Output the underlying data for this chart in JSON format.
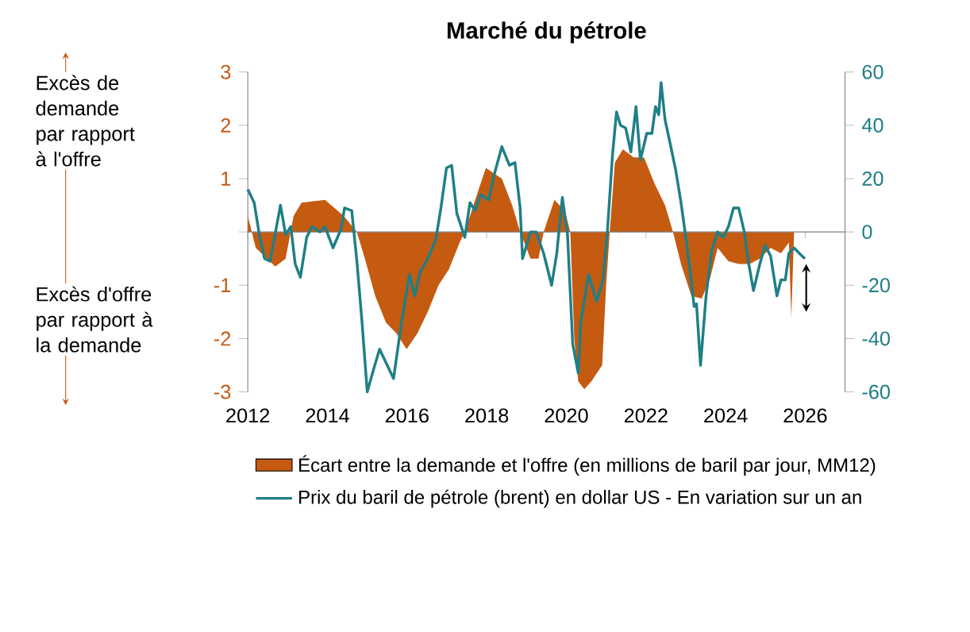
{
  "chart_data": {
    "type": "area",
    "title": "Marché du pétrole",
    "legend": "bottom",
    "marker": "none",
    "xlim": [
      2012,
      2027
    ],
    "xticks": [
      2012,
      2014,
      2016,
      2018,
      2020,
      2022,
      2024,
      2026
    ],
    "ylim": [
      -3,
      3
    ],
    "yticks": [
      -3,
      -2,
      -1,
      {
        "value": 0,
        "label": null
      },
      1,
      2,
      3
    ],
    "y2lim": [
      -60,
      60
    ],
    "y2ticks": [
      -60,
      -40,
      -20,
      0,
      20,
      40,
      60
    ],
    "annotations": [
      "Excès de demande par rapport à l'offre",
      "Excès d'offre par rapport à la demande"
    ],
    "series": [
      {
        "name": "Écart entre la demande et l'offre (en millions de baril par jour, MM12)",
        "color": "#c55a11",
        "x": [
          2012.0,
          2012.2,
          2012.69,
          2012.95,
          2013.15,
          2013.35,
          2013.94,
          2014.41,
          2014.74,
          2014.94,
          2015.2,
          2015.47,
          2015.73,
          2015.99,
          2016.26,
          2016.52,
          2016.79,
          2017.05,
          2017.32,
          2017.45,
          2017.71,
          2017.98,
          2018.18,
          2018.38,
          2018.64,
          2018.84,
          2019.1,
          2019.3,
          2019.43,
          2019.7,
          2019.96,
          2020.1,
          2020.2,
          2020.3,
          2020.45,
          2020.63,
          2020.9,
          2021.0,
          2021.09,
          2021.22,
          2021.42,
          2021.69,
          2021.95,
          2022.22,
          2022.48,
          2022.68,
          2022.88,
          2023.14,
          2023.4,
          2023.6,
          2023.8,
          2024.07,
          2024.33,
          2024.6,
          2024.86,
          2025.13,
          2025.39,
          2025.59,
          2025.65,
          2025.72
        ],
        "values": [
          0.3,
          -0.3,
          -0.65,
          -0.5,
          0.3,
          0.55,
          0.6,
          0.3,
          0,
          -0.5,
          -1.2,
          -1.7,
          -1.9,
          -2.2,
          -1.9,
          -1.5,
          -1.0,
          -0.7,
          -0.2,
          0,
          0.6,
          1.2,
          1.1,
          1.0,
          0.5,
          0,
          -0.5,
          -0.5,
          0,
          0.6,
          0.4,
          0,
          -2.0,
          -2.8,
          -2.95,
          -2.8,
          -2.5,
          -1.0,
          0,
          1.3,
          1.55,
          1.4,
          1.4,
          0.9,
          0.5,
          0,
          -0.6,
          -1.2,
          -1.25,
          -0.9,
          -0.3,
          -0.55,
          -0.6,
          -0.6,
          -0.5,
          -0.3,
          -0.4,
          -0.2,
          -1.6,
          0
        ]
      },
      {
        "name": "Prix du baril de pétrole (brent) en dollar US - En variation sur un an",
        "color": "#1f7f86",
        "type": "line",
        "axis": "y2",
        "x": [
          2012.0,
          2012.16,
          2012.29,
          2012.42,
          2012.56,
          2012.66,
          2012.82,
          2012.95,
          2013.08,
          2013.19,
          2013.32,
          2013.48,
          2013.61,
          2013.81,
          2013.94,
          2014.14,
          2014.34,
          2014.43,
          2014.61,
          2014.74,
          2014.87,
          2015.0,
          2015.17,
          2015.31,
          2015.47,
          2015.66,
          2015.86,
          2016.06,
          2016.19,
          2016.33,
          2016.52,
          2016.72,
          2016.85,
          2016.99,
          2017.12,
          2017.25,
          2017.45,
          2017.58,
          2017.71,
          2017.85,
          2018.05,
          2018.18,
          2018.38,
          2018.57,
          2018.71,
          2018.84,
          2018.9,
          2019.1,
          2019.24,
          2019.43,
          2019.63,
          2019.76,
          2019.9,
          2020.03,
          2020.16,
          2020.3,
          2020.36,
          2020.56,
          2020.76,
          2020.92,
          2021.03,
          2021.16,
          2021.26,
          2021.36,
          2021.49,
          2021.62,
          2021.75,
          2021.86,
          2022.02,
          2022.15,
          2022.24,
          2022.32,
          2022.38,
          2022.48,
          2022.61,
          2022.75,
          2022.88,
          2023.01,
          2023.12,
          2023.21,
          2023.27,
          2023.37,
          2023.51,
          2023.65,
          2023.8,
          2023.94,
          2024.07,
          2024.2,
          2024.33,
          2024.47,
          2024.57,
          2024.7,
          2024.86,
          2024.99,
          2025.13,
          2025.29,
          2025.39,
          2025.5,
          2025.59,
          2025.72,
          2025.85,
          2025.99
        ],
        "values": [
          16,
          11,
          -1,
          -10,
          -11,
          -3,
          10,
          -1,
          2,
          -12,
          -17,
          -2,
          2,
          0,
          2,
          -6,
          1,
          9,
          8,
          -11,
          -34,
          -60,
          -51,
          -44,
          -49,
          -55,
          -34,
          -16,
          -24,
          -15,
          -10,
          -3,
          9,
          24,
          25,
          7,
          -2,
          11,
          8,
          14,
          12,
          21,
          32,
          25,
          26,
          9,
          -10,
          0,
          0,
          -8,
          -20,
          -8,
          13,
          -1,
          -42,
          -53,
          -34,
          -16,
          -26,
          -18,
          0,
          29,
          45,
          40,
          39,
          30,
          47,
          27,
          37,
          37,
          47,
          44,
          56,
          42,
          33,
          23,
          11,
          -3,
          -16,
          -28,
          -27,
          -50,
          -24,
          -7,
          0,
          -2,
          2,
          9,
          9,
          0,
          -11,
          -22,
          -12,
          -5,
          -9,
          -24,
          -18,
          -18,
          -8,
          -6,
          -8,
          -10
        ]
      }
    ]
  }
}
